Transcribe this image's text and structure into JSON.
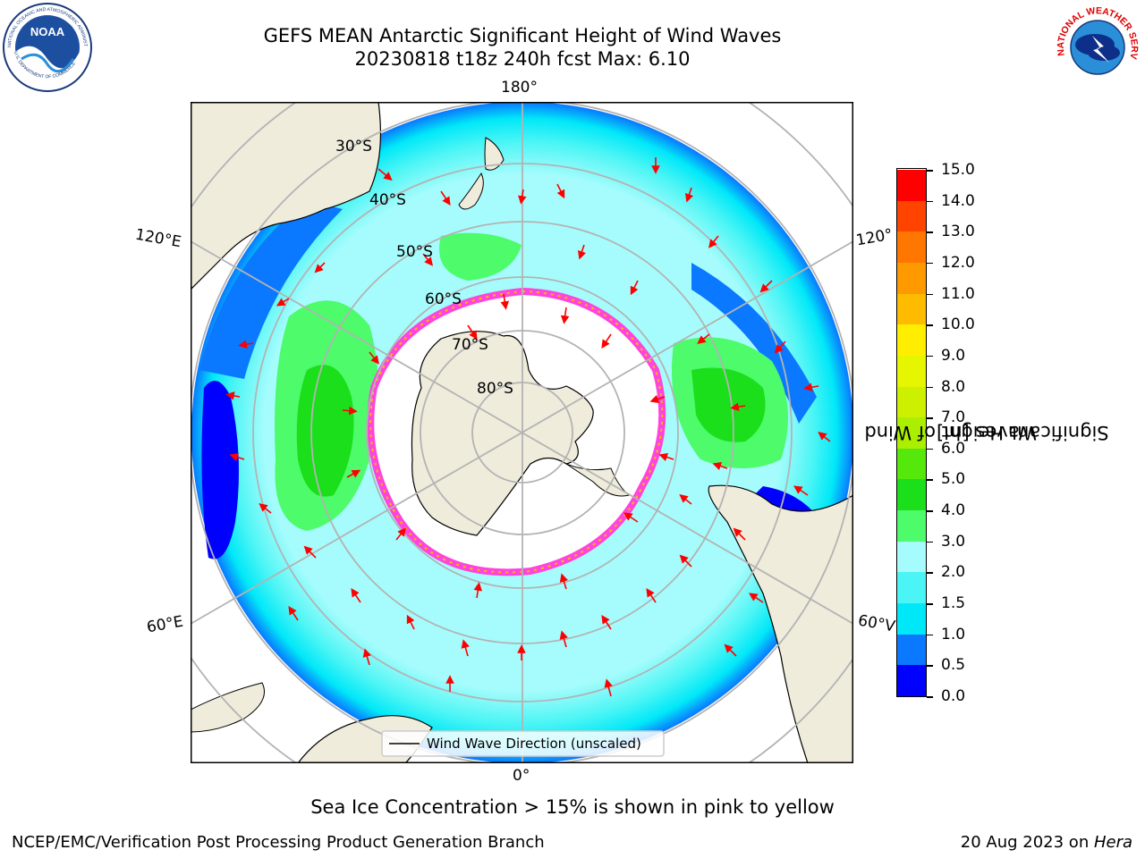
{
  "header": {
    "title_line1": "GEFS MEAN Antarctic Significant Height of Wind Waves",
    "title_line2": "20230818 t18z 240h fcst   Max: 6.10"
  },
  "logos": {
    "noaa": {
      "label": "NOAA",
      "ring_text": "NATIONAL OCEANIC AND ATMOSPHERIC ADMINISTRATION",
      "ring_text_bottom": "U.S. DEPARTMENT OF COMMERCE"
    },
    "nws": {
      "ring_text": "NATIONAL WEATHER SERVICE"
    }
  },
  "map": {
    "projection": "south polar stereographic",
    "lon_labels": [
      "180°",
      "120°E",
      "120°",
      "60°E",
      "60°V",
      "0°"
    ],
    "lat_labels": [
      "30°S",
      "40°S",
      "50°S",
      "60°S",
      "70°S",
      "80°S"
    ],
    "legend": "Wind Wave Direction (unscaled)",
    "colors": {
      "land": "#efecdc",
      "ice": "#ffffff",
      "sea_ice_edge": "#ff44dd",
      "arrow": "#ff0000",
      "grid": "#b3b3b3"
    }
  },
  "colorbar": {
    "label_line1": "Significant Height of Wind",
    "label_line2": "Waves [m]",
    "ticks": [
      "15.0",
      "14.0",
      "13.0",
      "12.0",
      "11.0",
      "10.0",
      "9.0",
      "8.0",
      "7.0",
      "6.0",
      "5.0",
      "4.0",
      "3.0",
      "2.0",
      "1.5",
      "1.0",
      "0.5",
      "0.0"
    ],
    "bins": [
      {
        "from": 0.0,
        "to": 0.5,
        "color": "#0000ff"
      },
      {
        "from": 0.5,
        "to": 1.0,
        "color": "#0a78ff"
      },
      {
        "from": 1.0,
        "to": 1.5,
        "color": "#00e8f8"
      },
      {
        "from": 1.5,
        "to": 2.0,
        "color": "#4cf5f5"
      },
      {
        "from": 2.0,
        "to": 3.0,
        "color": "#a6fcfc"
      },
      {
        "from": 3.0,
        "to": 4.0,
        "color": "#4dfb6b"
      },
      {
        "from": 4.0,
        "to": 5.0,
        "color": "#1adf1a"
      },
      {
        "from": 5.0,
        "to": 6.0,
        "color": "#55e80b"
      },
      {
        "from": 6.0,
        "to": 7.0,
        "color": "#aaee00"
      },
      {
        "from": 7.0,
        "to": 8.0,
        "color": "#ccf000"
      },
      {
        "from": 8.0,
        "to": 9.0,
        "color": "#e6f500"
      },
      {
        "from": 9.0,
        "to": 10.0,
        "color": "#ffee00"
      },
      {
        "from": 10.0,
        "to": 11.0,
        "color": "#ffbb00"
      },
      {
        "from": 11.0,
        "to": 12.0,
        "color": "#ff9900"
      },
      {
        "from": 12.0,
        "to": 13.0,
        "color": "#ff7700"
      },
      {
        "from": 13.0,
        "to": 14.0,
        "color": "#ff4400"
      },
      {
        "from": 14.0,
        "to": 15.0,
        "color": "#ff0000"
      }
    ]
  },
  "footer": {
    "note": "Sea Ice Concentration > 15% is shown in pink to yellow",
    "credit": "NCEP/EMC/Verification Post Processing Product Generation Branch",
    "date": "20 Aug 2023 on ",
    "machine": "Hera"
  }
}
